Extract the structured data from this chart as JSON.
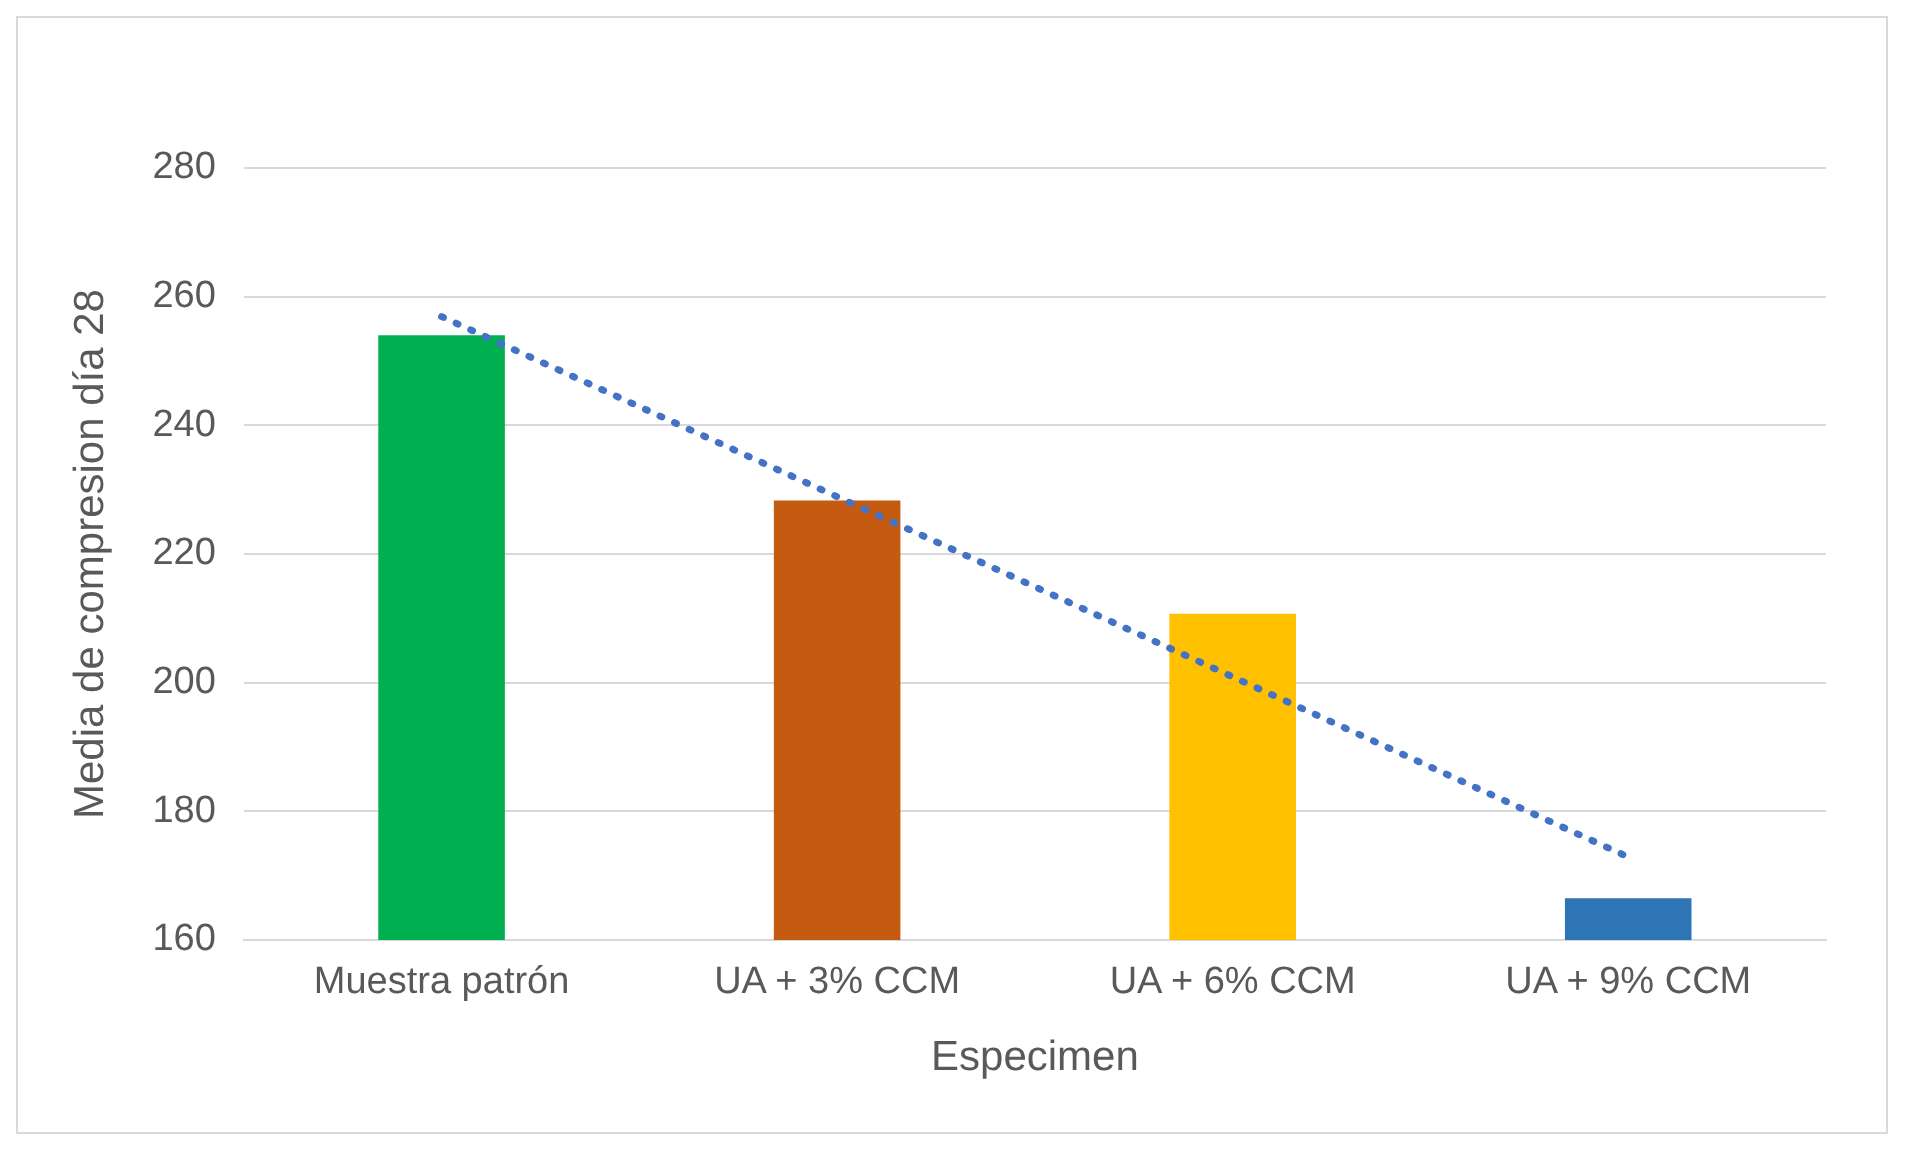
{
  "chart_data": {
    "type": "bar",
    "xlabel": "Especimen",
    "ylabel": "Media de compresion día 28",
    "categories": [
      "Muestra patrón",
      "UA + 3% CCM",
      "UA + 6% CCM",
      "UA + 9% CCM"
    ],
    "series": [
      {
        "colors": [
          "#00b050",
          "#c55a11",
          "#ffc000",
          "#2e75b6"
        ],
        "values": [
          254,
          228.3,
          210.7,
          166.5
        ]
      },
      {
        "type": "line",
        "color": "#4472c4",
        "line_style": "dotted",
        "marker": "none",
        "values": [
          256.9,
          228.9,
          200.9,
          172.9
        ]
      }
    ],
    "ylim": [
      160,
      280
    ],
    "yticks": [
      160,
      180,
      200,
      220,
      240,
      260,
      280
    ],
    "grid": "y",
    "legend": false
  }
}
